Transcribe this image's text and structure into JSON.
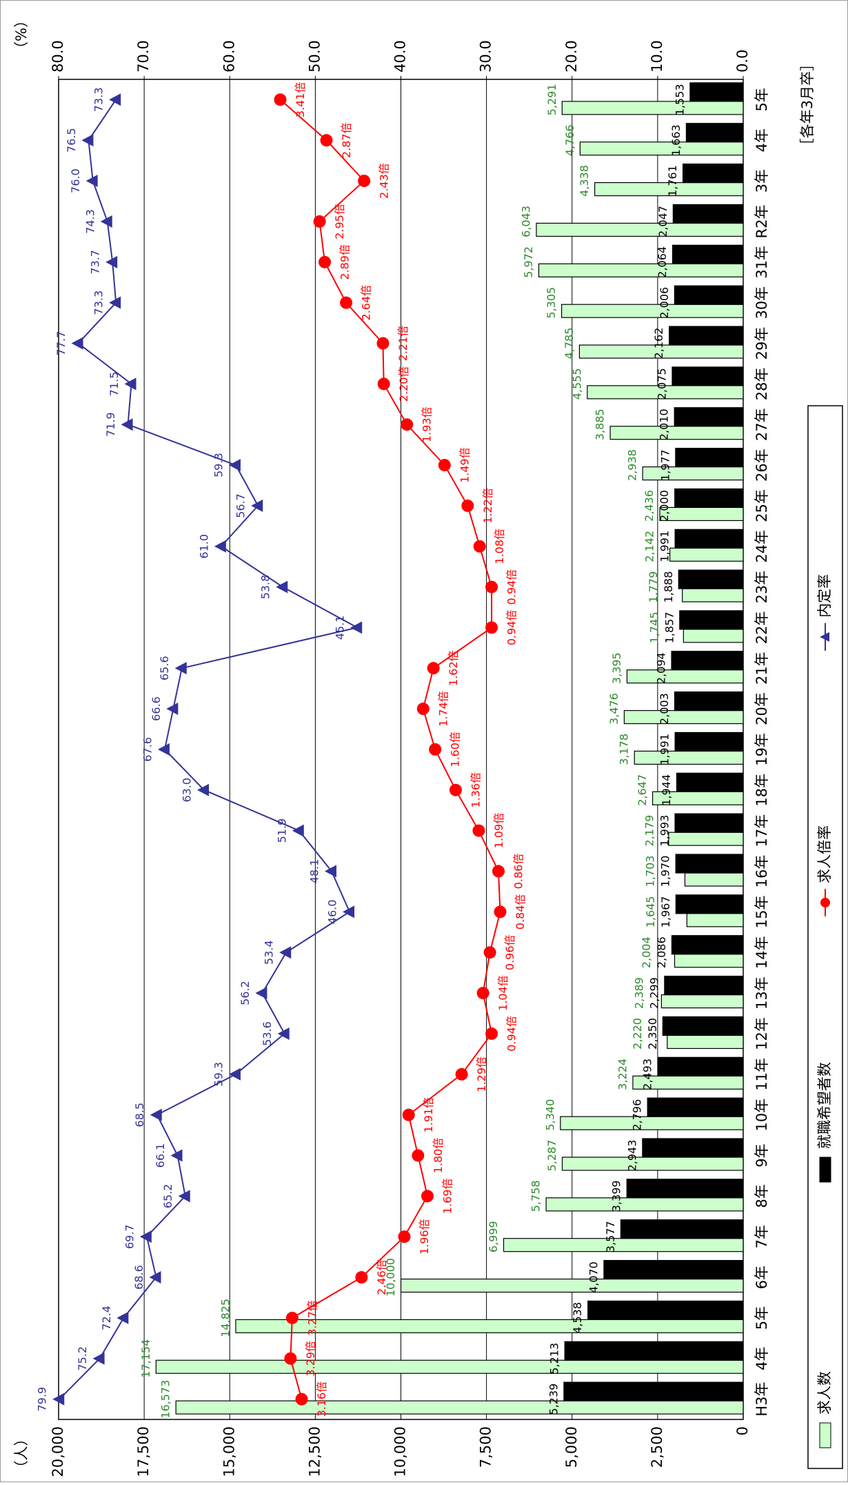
{
  "chart_data": {
    "type": "bar-line",
    "y_axis_label": "（人）",
    "y2_axis_label": "（%）",
    "note": "［各年3月卒］",
    "categories": [
      "H3年",
      "4年",
      "5年",
      "6年",
      "7年",
      "8年",
      "9年",
      "10年",
      "11年",
      "12年",
      "13年",
      "14年",
      "15年",
      "16年",
      "17年",
      "18年",
      "19年",
      "20年",
      "21年",
      "22年",
      "23年",
      "24年",
      "25年",
      "26年",
      "27年",
      "28年",
      "29年",
      "30年",
      "31年",
      "R2年",
      "3年",
      "4年",
      "5年"
    ],
    "ylim": [
      0,
      20000
    ],
    "yticks": [
      0,
      {
        "value": 2500,
        "label": "2,500"
      },
      {
        "value": 5000,
        "label": "5,000"
      },
      {
        "value": 7500,
        "label": "7,500"
      },
      {
        "value": 10000,
        "label": "10,000"
      },
      {
        "value": 12500,
        "label": "12,500"
      },
      {
        "value": 15000,
        "label": "15,000"
      },
      {
        "value": 17500,
        "label": "17,500"
      },
      {
        "value": 20000,
        "label": "20,000"
      }
    ],
    "y2lim": [
      0,
      80
    ],
    "y2ticks": [
      {
        "value": 0,
        "label": "0.0"
      },
      {
        "value": 10,
        "label": "10.0"
      },
      {
        "value": 20,
        "label": "20.0"
      },
      {
        "value": 30,
        "label": "30.0"
      },
      {
        "value": 40,
        "label": "40.0"
      },
      {
        "value": 50,
        "label": "50.0"
      },
      {
        "value": 60,
        "label": "60.0"
      },
      {
        "value": 70,
        "label": "70.0"
      },
      {
        "value": 80,
        "label": "80.0"
      }
    ],
    "y3lim": [
      -2,
      6
    ],
    "grid": true,
    "series": [
      {
        "name": "求人数",
        "kind": "bar",
        "color": "#ccffcc",
        "label_color": "#2e8b2e",
        "values": [
          16573,
          17154,
          14825,
          10000,
          6999,
          5758,
          5287,
          5340,
          3224,
          2220,
          2389,
          2004,
          1645,
          1703,
          2179,
          2647,
          3178,
          3476,
          3395,
          1745,
          1779,
          2142,
          2436,
          2938,
          3885,
          4555,
          4785,
          5305,
          5972,
          6043,
          4338,
          4766,
          5291
        ],
        "value_labels": [
          "16,573",
          "17,154",
          "14,825",
          "10,000",
          "6,999",
          "5,758",
          "5,287",
          "5,340",
          "3,224",
          "2,220",
          "2,389",
          "2,004",
          "1,645",
          "1,703",
          "2,179",
          "2,647",
          "3,178",
          "3,476",
          "3,395",
          "1,745",
          "1,779",
          "2,142",
          "2,436",
          "2,938",
          "3,885",
          "4,555",
          "4,785",
          "5,305",
          "5,972",
          "6,043",
          "4,338",
          "4,766",
          "5,291"
        ]
      },
      {
        "name": "就職希望者数",
        "kind": "bar",
        "color": "#000000",
        "label_color": "#000000",
        "values": [
          5239,
          5213,
          4538,
          4070,
          3577,
          3399,
          2943,
          2796,
          2493,
          2350,
          2299,
          2086,
          1967,
          1970,
          1993,
          1944,
          1991,
          2003,
          2094,
          1857,
          1888,
          1991,
          2000,
          1977,
          2010,
          2075,
          2162,
          2006,
          2064,
          2047,
          1761,
          1663,
          1553
        ],
        "value_labels": [
          "5,239",
          "5,213",
          "4,538",
          "4,070",
          "3,577",
          "3,399",
          "2,943",
          "2,796",
          "2,493",
          "2,350",
          "2,299",
          "2,086",
          "1,967",
          "1,970",
          "1,993",
          "1,944",
          "1,991",
          "2,003",
          "2,094",
          "1,857",
          "1,888",
          "1,991",
          "2,000",
          "1,977",
          "2,010",
          "2,075",
          "2,162",
          "2,006",
          "2,064",
          "2,047",
          "1,761",
          "1,663",
          "1,553"
        ]
      },
      {
        "name": "求人倍率",
        "kind": "line",
        "marker": "circle",
        "axis": "y3",
        "color": "#ff0000",
        "label_color": "#ff0000",
        "values": [
          3.16,
          3.29,
          3.27,
          2.46,
          1.96,
          1.69,
          1.8,
          1.91,
          1.29,
          0.94,
          1.04,
          0.96,
          0.84,
          0.86,
          1.09,
          1.36,
          1.6,
          1.74,
          1.62,
          0.94,
          0.94,
          1.08,
          1.22,
          1.49,
          1.93,
          2.2,
          2.21,
          2.64,
          2.89,
          2.95,
          2.43,
          2.87,
          3.41
        ],
        "value_labels": [
          "3.16倍",
          "3.29倍",
          "3.27倍",
          "2.46倍",
          "1.96倍",
          "1.69倍",
          "1.80倍",
          "1.91倍",
          "1.29倍",
          "0.94倍",
          "1.04倍",
          "0.96倍",
          "0.84倍",
          "0.86倍",
          "1.09倍",
          "1.36倍",
          "1.60倍",
          "1.74倍",
          "1.62倍",
          "0.94倍",
          "0.94倍",
          "1.08倍",
          "1.22倍",
          "1.49倍",
          "1.93倍",
          "2.20倍",
          "2.21倍",
          "2.64倍",
          "2.89倍",
          "2.95倍",
          "2.43倍",
          "2.87倍",
          "3.41倍"
        ]
      },
      {
        "name": "内定率",
        "kind": "line",
        "marker": "triangle",
        "axis": "y2",
        "color": "#333399",
        "label_color": "#333399",
        "values": [
          79.9,
          75.2,
          72.4,
          68.6,
          69.7,
          65.2,
          66.1,
          68.5,
          59.3,
          53.6,
          56.2,
          53.4,
          46.0,
          48.1,
          51.9,
          63.0,
          67.6,
          66.6,
          65.6,
          45.1,
          53.8,
          61.0,
          56.7,
          59.3,
          71.9,
          71.5,
          77.7,
          73.3,
          73.7,
          74.3,
          76.0,
          76.5,
          73.3
        ],
        "value_labels": [
          "79.9",
          "75.2",
          "72.4",
          "68.6",
          "69.7",
          "65.2",
          "66.1",
          "68.5",
          "59.3",
          "53.6",
          "56.2",
          "53.4",
          "46.0",
          "48.1",
          "51.9",
          "63.0",
          "67.6",
          "66.6",
          "65.6",
          "45.1",
          "53.8",
          "61.0",
          "56.7",
          "59.3",
          "71.9",
          "71.5",
          "77.7",
          "73.3",
          "73.7",
          "74.3",
          "76.0",
          "76.5",
          "73.3"
        ]
      }
    ]
  }
}
